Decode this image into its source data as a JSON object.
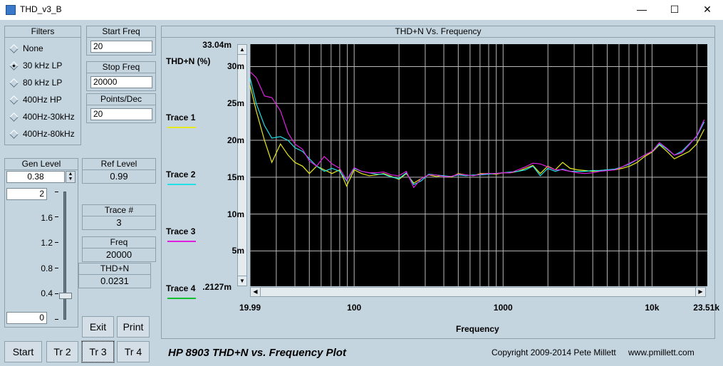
{
  "window": {
    "title": "THD_v3_B",
    "minimize": "—",
    "maximize": "☐",
    "close": "✕"
  },
  "filters": {
    "header": "Filters",
    "options": [
      "None",
      "30 kHz LP",
      "80 kHz LP",
      "400Hz HP",
      "400Hz-30kHz",
      "400Hz-80kHz"
    ],
    "selected": "30 kHz LP"
  },
  "start_freq": {
    "label": "Start Freq",
    "value": "20"
  },
  "stop_freq": {
    "label": "Stop Freq",
    "value": "20000"
  },
  "points_dec": {
    "label": "Points/Dec",
    "value": "20"
  },
  "gen_level": {
    "label": "Gen Level",
    "value": "0.38",
    "slider_max": "2",
    "slider_min": "0",
    "ticks": [
      "1.6",
      "1.2",
      "0.8",
      "0.4"
    ],
    "slider_level": 0.38
  },
  "ref_level": {
    "label": "Ref Level",
    "value": "0.99"
  },
  "trace_num": {
    "label": "Trace #",
    "value": "3"
  },
  "freq": {
    "label": "Freq",
    "value": "20000"
  },
  "thdn": {
    "label": "THD+N",
    "value": "0.0231"
  },
  "buttons": {
    "exit": "Exit",
    "print": "Print",
    "start": "Start",
    "tr2": "Tr 2",
    "tr3": "Tr 3",
    "tr4": "Tr 4"
  },
  "plot": {
    "header": "THD+N Vs. Frequency",
    "footer_title": "HP 8903 THD+N vs. Frequency Plot",
    "copyright": "Copyright 2009-2014 Pete Millett",
    "website": "www.pmillett.com"
  },
  "traces": [
    {
      "name": "Trace 1",
      "color": "#e8e820"
    },
    {
      "name": "Trace 2",
      "color": "#20e0e8"
    },
    {
      "name": "Trace 3",
      "color": "#e020e0"
    },
    {
      "name": "Trace 4",
      "color": "#10c030"
    }
  ],
  "chart_data": {
    "type": "line",
    "title": "THD+N Vs. Frequency",
    "xlabel": "Frequency",
    "ylabel": "THD+N (%)",
    "x_scale": "log",
    "xlim": [
      19.99,
      23510
    ],
    "ylim": [
      0.2127,
      33.04
    ],
    "y_unit": "m",
    "y_max_label": "33.04m",
    "y_min_label": ".2127m",
    "y_ticks": [
      "30m",
      "25m",
      "20m",
      "15m",
      "10m",
      "5m"
    ],
    "x_tick_labels": [
      "19.99",
      "100",
      "1000",
      "10k",
      "23.51k"
    ],
    "grid": true,
    "background": "#000000",
    "series": [
      {
        "name": "Trace 1",
        "color": "#e8e820",
        "x": [
          20,
          22,
          25,
          28,
          32,
          36,
          40,
          45,
          50,
          56,
          63,
          71,
          80,
          89,
          100,
          112,
          126,
          141,
          158,
          178,
          200,
          224,
          251,
          282,
          316,
          355,
          398,
          447,
          501,
          562,
          631,
          708,
          794,
          891,
          1000,
          1122,
          1259,
          1413,
          1585,
          1778,
          1995,
          2239,
          2512,
          2818,
          3162,
          3548,
          3981,
          4467,
          5012,
          5623,
          6310,
          7079,
          7943,
          8913,
          10000,
          11220,
          12589,
          14125,
          15849,
          17783,
          19953,
          22387
        ],
        "y": [
          27.5,
          24,
          20,
          17,
          19.5,
          18,
          17,
          16.5,
          15.5,
          16.5,
          16,
          15.5,
          16,
          13.8,
          16,
          15.5,
          15.2,
          15.3,
          15.5,
          15.1,
          14.7,
          15.5,
          14.2,
          14.8,
          15.3,
          15.1,
          15.2,
          15.0,
          15.5,
          15.3,
          15.2,
          15.5,
          15.5,
          15.4,
          15.6,
          15.6,
          15.8,
          16.2,
          16.6,
          15.5,
          16.5,
          16.0,
          17.0,
          16.2,
          16.0,
          15.9,
          15.8,
          15.9,
          16.0,
          16.0,
          16.2,
          16.5,
          17.0,
          17.8,
          18.4,
          19.4,
          18.5,
          17.5,
          18.0,
          18.5,
          19.5,
          21.5
        ]
      },
      {
        "name": "Trace 2",
        "color": "#20e0e8",
        "x": [
          20,
          22,
          25,
          28,
          32,
          36,
          40,
          45,
          50,
          56,
          63,
          71,
          80,
          89,
          100,
          112,
          126,
          141,
          158,
          178,
          200,
          224,
          251,
          282,
          316,
          355,
          398,
          447,
          501,
          562,
          631,
          708,
          794,
          891,
          1000,
          1122,
          1259,
          1413,
          1585,
          1778,
          1995,
          2239,
          2512,
          2818,
          3162,
          3548,
          3981,
          4467,
          5012,
          5623,
          6310,
          7079,
          7943,
          8913,
          10000,
          11220,
          12589,
          14125,
          15849,
          17783,
          19953,
          22387
        ],
        "y": [
          28.5,
          25,
          22,
          20.3,
          20.5,
          20,
          19,
          18.5,
          17.5,
          16.5,
          15.8,
          16.2,
          15.8,
          14.5,
          16.2,
          15.8,
          15.6,
          15.4,
          15.4,
          15.0,
          14.8,
          15.6,
          14.0,
          14.5,
          15.4,
          15.3,
          15.2,
          15.1,
          15.3,
          15.2,
          15.3,
          15.3,
          15.4,
          15.5,
          15.6,
          15.7,
          15.8,
          16.0,
          16.5,
          15.2,
          16.2,
          15.8,
          16.1,
          15.8,
          15.8,
          15.8,
          15.9,
          15.9,
          16.0,
          16.1,
          16.4,
          16.8,
          17.4,
          18.0,
          18.5,
          19.5,
          18.8,
          18.0,
          18.5,
          19.5,
          20.5,
          22.5
        ]
      },
      {
        "name": "Trace 3",
        "color": "#e020e0",
        "x": [
          20,
          22,
          25,
          28,
          32,
          36,
          40,
          45,
          50,
          56,
          63,
          71,
          80,
          89,
          100,
          112,
          126,
          141,
          158,
          178,
          200,
          224,
          251,
          282,
          316,
          355,
          398,
          447,
          501,
          562,
          631,
          708,
          794,
          891,
          1000,
          1122,
          1259,
          1413,
          1585,
          1778,
          1995,
          2239,
          2512,
          2818,
          3162,
          3548,
          3981,
          4467,
          5012,
          5623,
          6310,
          7079,
          7943,
          8913,
          10000,
          11220,
          12589,
          14125,
          15849,
          17783,
          19953,
          22387
        ],
        "y": [
          29.3,
          28.5,
          26,
          25.8,
          24,
          21,
          19.5,
          18.8,
          17.2,
          16.5,
          17.8,
          16.8,
          16.2,
          14.6,
          16.3,
          15.8,
          15.6,
          15.6,
          15.7,
          15.3,
          15.2,
          15.8,
          13.6,
          14.8,
          15.3,
          15.3,
          15.1,
          15.1,
          15.4,
          15.3,
          15.2,
          15.4,
          15.5,
          15.5,
          15.6,
          15.6,
          16.0,
          16.4,
          16.9,
          16.8,
          16.4,
          16.0,
          16.0,
          15.8,
          15.6,
          15.5,
          15.6,
          15.8,
          15.9,
          16.0,
          16.4,
          16.9,
          17.4,
          18.0,
          18.5,
          19.7,
          18.9,
          18.0,
          18.3,
          19.4,
          20.6,
          22.8
        ]
      },
      {
        "name": "Trace 4",
        "color": "#10c030",
        "x": [],
        "y": []
      }
    ]
  }
}
